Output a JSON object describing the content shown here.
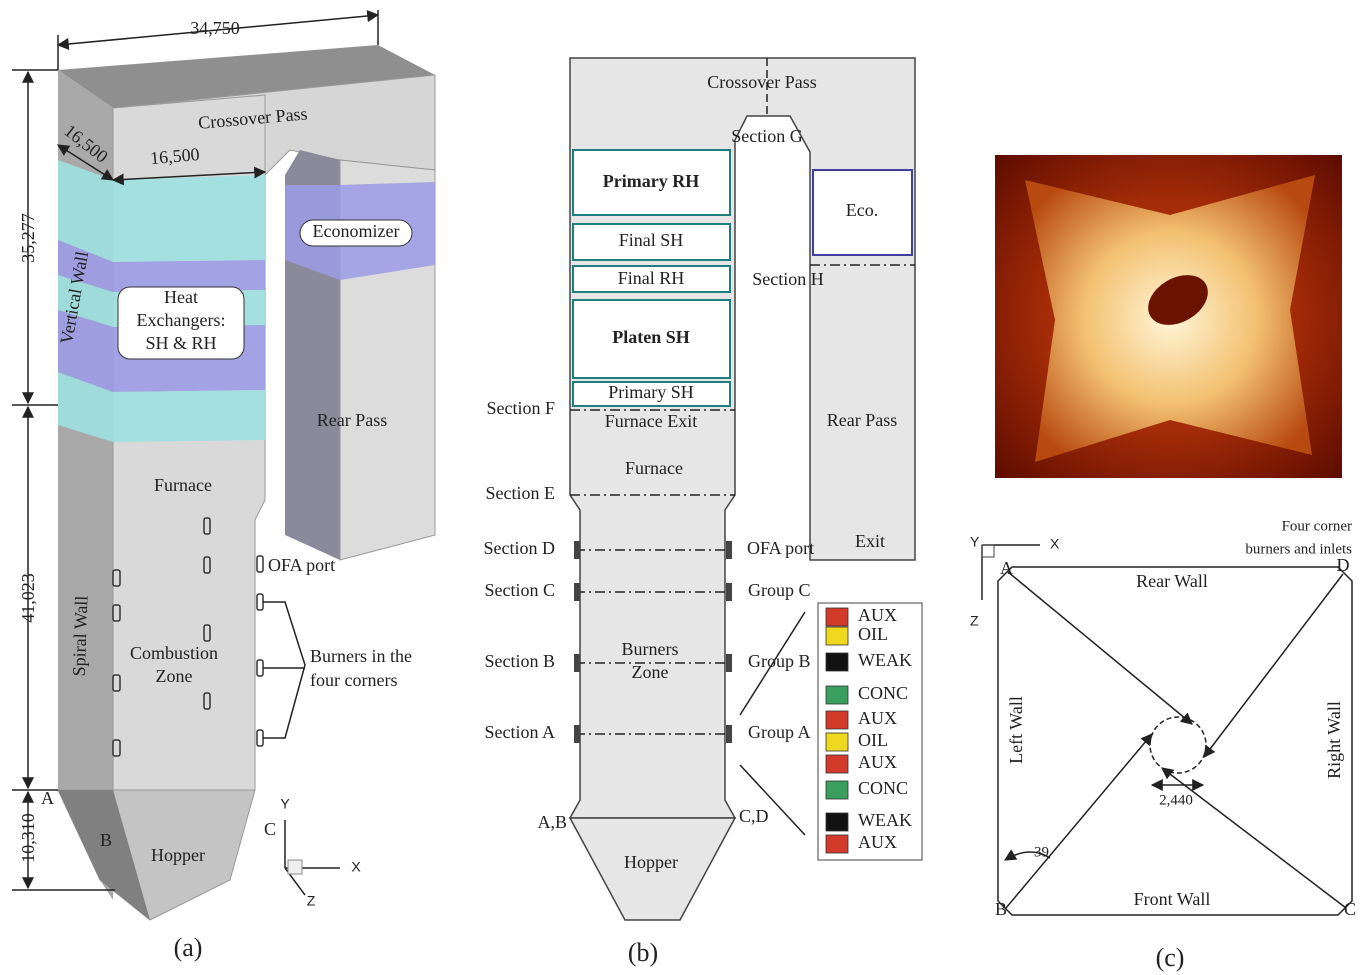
{
  "panel_a": {
    "caption": "(a)",
    "dimensions": {
      "width": "34,750",
      "depth": "16,500",
      "inner_width": "16,500",
      "vertical_wall_height": "35,277",
      "spiral_wall_height": "41,023",
      "hopper_height": "10,310"
    },
    "labels": {
      "crossover_pass": "Crossover Pass",
      "economizer": "Economizer",
      "heat_exchangers": [
        "Heat",
        "Exchangers:",
        "SH & RH"
      ],
      "vertical_wall": "Vertical Wall",
      "rear_pass": "Rear Pass",
      "furnace": "Furnace",
      "ofa_port": "OFA port",
      "spiral_wall": "Spiral Wall",
      "combustion_zone": [
        "Combustion",
        "Zone"
      ],
      "burners": [
        "Burners in the",
        "four corners"
      ],
      "hopper": "Hopper"
    },
    "points": [
      "A",
      "B",
      "C"
    ],
    "axes": [
      "Y",
      "X",
      "Z"
    ]
  },
  "panel_b": {
    "caption": "(b)",
    "labels": {
      "crossover_pass": "Crossover Pass",
      "section_g": "Section G",
      "primary_rh": "Primary RH",
      "final_sh": "Final SH",
      "final_rh": "Final RH",
      "platen_sh": "Platen SH",
      "primary_sh": "Primary SH",
      "eco": "Eco.",
      "section_h": "Section H",
      "rear_pass": "Rear Pass",
      "exit": "Exit",
      "furnace_exit": "Furnace Exit",
      "furnace": "Furnace",
      "ofa_port": "OFA port",
      "burners_zone": [
        "Burners",
        "Zone"
      ],
      "hopper": "Hopper",
      "ab": "A,B",
      "cd": "C,D"
    },
    "sections": [
      "Section F",
      "Section E",
      "Section D",
      "Section C",
      "Section B",
      "Section A"
    ],
    "groups": [
      "Group C",
      "Group B",
      "Group A"
    ],
    "legend": [
      {
        "label": "AUX",
        "color": "#d23a2a"
      },
      {
        "label": "OIL",
        "color": "#f0d81e"
      },
      {
        "label": "WEAK",
        "color": "#111111"
      },
      {
        "label": "CONC",
        "color": "#3a9e5e"
      },
      {
        "label": "AUX",
        "color": "#d23a2a"
      },
      {
        "label": "OIL",
        "color": "#f0d81e"
      },
      {
        "label": "AUX",
        "color": "#d23a2a"
      },
      {
        "label": "CONC",
        "color": "#3a9e5e"
      },
      {
        "label": "WEAK",
        "color": "#111111"
      },
      {
        "label": "AUX",
        "color": "#d23a2a"
      }
    ]
  },
  "panel_c": {
    "caption": "(c)",
    "labels": {
      "corners": [
        "Four corner",
        "burners and inlets"
      ],
      "rear_wall": "Rear Wall",
      "front_wall": "Front Wall",
      "left_wall": "Left Wall",
      "right_wall": "Right Wall",
      "circle_diameter": "2,440",
      "angle": "39"
    },
    "points": [
      "A",
      "B",
      "C",
      "D"
    ],
    "axes": [
      "Y",
      "X",
      "Z"
    ]
  }
}
